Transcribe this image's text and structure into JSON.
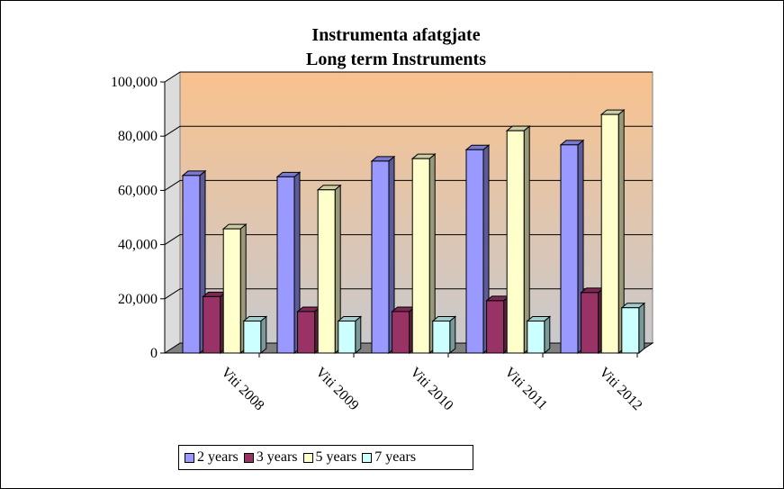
{
  "chart_data": {
    "type": "bar",
    "title": [
      "Instrumenta afatgjate",
      "Long term Instruments"
    ],
    "categories": [
      "Viti 2008",
      "Viti 2009",
      "Viti 2010",
      "Viti 2011",
      "Viti 2012"
    ],
    "series": [
      {
        "name": "2 years",
        "color": "#9999ff",
        "values": [
          65500,
          65000,
          70800,
          75000,
          76800
        ]
      },
      {
        "name": "3 years",
        "color": "#993366",
        "values": [
          20800,
          15300,
          15300,
          19300,
          22300
        ]
      },
      {
        "name": "5 years",
        "color": "#ffffcc",
        "values": [
          45800,
          60200,
          71700,
          82000,
          88000
        ]
      },
      {
        "name": "7 years",
        "color": "#ccffff",
        "values": [
          11800,
          11800,
          11800,
          11800,
          16700
        ]
      }
    ],
    "ylim": [
      0,
      100000
    ],
    "yticks": [
      0,
      20000,
      40000,
      60000,
      80000,
      100000
    ],
    "ytick_labels": [
      "0",
      "20,000",
      "40,000",
      "60,000",
      "80,000",
      "100,000"
    ],
    "grid": true,
    "legend_position": "bottom"
  }
}
